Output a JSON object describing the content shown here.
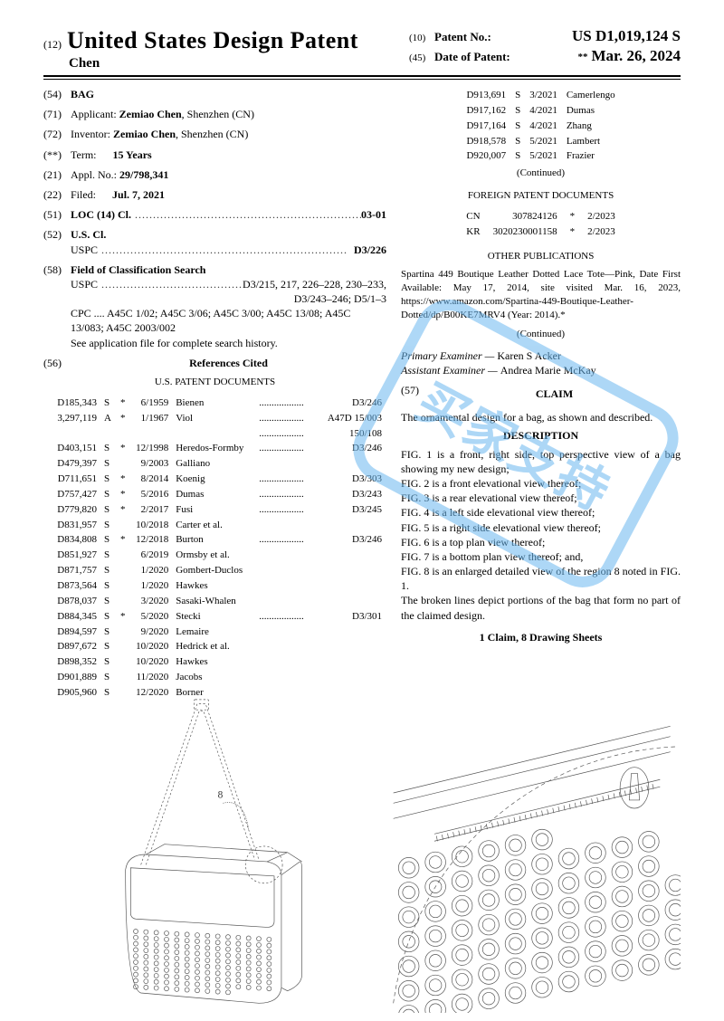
{
  "header": {
    "left_code": "(12)",
    "title": "United States Design Patent",
    "applicant_short": "Chen",
    "r1_code": "(10)",
    "r1_label": "Patent No.:",
    "r1_val": "US D1,019,124 S",
    "r2_code": "(45)",
    "r2_label": "Date of Patent:",
    "r2_ast": "**",
    "r2_val": "Mar. 26, 2024"
  },
  "fields": {
    "f54_code": "(54)",
    "f54_label": "BAG",
    "f71_code": "(71)",
    "f71_label": "Applicant:",
    "f71_val": "Zemiao Chen",
    "f71_loc": ", Shenzhen (CN)",
    "f72_code": "(72)",
    "f72_label": "Inventor:",
    "f72_val": "Zemiao Chen",
    "f72_loc": ", Shenzhen (CN)",
    "fterm_code": "(**)",
    "fterm_label": "Term:",
    "fterm_val": "15 Years",
    "f21_code": "(21)",
    "f21_label": "Appl. No.:",
    "f21_val": "29/798,341",
    "f22_code": "(22)",
    "f22_label": "Filed:",
    "f22_val": "Jul. 7, 2021",
    "f51_code": "(51)",
    "f51_label": "LOC (14) Cl.",
    "f51_val": "03-01",
    "f52_code": "(52)",
    "f52_label": "U.S. Cl.",
    "f52_sub": "USPC",
    "f52_val": "D3/226",
    "f58_code": "(58)",
    "f58_label": "Field of Classification Search",
    "f58_uspc": "USPC",
    "f58_uspc_val": "D3/215, 217, 226–228, 230–233,",
    "f58_uspc_val2": "D3/243–246; D5/1–3",
    "f58_cpc": "CPC .... A45C 1/02; A45C 3/06; A45C 3/00; A45C 13/08; A45C 13/083; A45C 2003/002",
    "f58_note": "See application file for complete search history.",
    "f56_code": "(56)",
    "f56_label": "References Cited",
    "us_docs_title": "U.S. PATENT DOCUMENTS"
  },
  "us_refs": [
    {
      "no": "D185,343",
      "t": "S",
      "a": "*",
      "d": "6/1959",
      "n": "Bienen",
      "c": "D3/246"
    },
    {
      "no": "3,297,119",
      "t": "A",
      "a": "*",
      "d": "1/1967",
      "n": "Viol",
      "c": "A47D 15/003"
    },
    {
      "no": "",
      "t": "",
      "a": "",
      "d": "",
      "n": "",
      "c": "150/108"
    },
    {
      "no": "D403,151",
      "t": "S",
      "a": "*",
      "d": "12/1998",
      "n": "Heredos-Formby",
      "c": "D3/246"
    },
    {
      "no": "D479,397",
      "t": "S",
      "a": "",
      "d": "9/2003",
      "n": "Galliano",
      "c": ""
    },
    {
      "no": "D711,651",
      "t": "S",
      "a": "*",
      "d": "8/2014",
      "n": "Koenig",
      "c": "D3/303"
    },
    {
      "no": "D757,427",
      "t": "S",
      "a": "*",
      "d": "5/2016",
      "n": "Dumas",
      "c": "D3/243"
    },
    {
      "no": "D779,820",
      "t": "S",
      "a": "*",
      "d": "2/2017",
      "n": "Fusi",
      "c": "D3/245"
    },
    {
      "no": "D831,957",
      "t": "S",
      "a": "",
      "d": "10/2018",
      "n": "Carter et al.",
      "c": ""
    },
    {
      "no": "D834,808",
      "t": "S",
      "a": "*",
      "d": "12/2018",
      "n": "Burton",
      "c": "D3/246"
    },
    {
      "no": "D851,927",
      "t": "S",
      "a": "",
      "d": "6/2019",
      "n": "Ormsby et al.",
      "c": ""
    },
    {
      "no": "D871,757",
      "t": "S",
      "a": "",
      "d": "1/2020",
      "n": "Gombert-Duclos",
      "c": ""
    },
    {
      "no": "D873,564",
      "t": "S",
      "a": "",
      "d": "1/2020",
      "n": "Hawkes",
      "c": ""
    },
    {
      "no": "D878,037",
      "t": "S",
      "a": "",
      "d": "3/2020",
      "n": "Sasaki-Whalen",
      "c": ""
    },
    {
      "no": "D884,345",
      "t": "S",
      "a": "*",
      "d": "5/2020",
      "n": "Stecki",
      "c": "D3/301"
    },
    {
      "no": "D894,597",
      "t": "S",
      "a": "",
      "d": "9/2020",
      "n": "Lemaire",
      "c": ""
    },
    {
      "no": "D897,672",
      "t": "S",
      "a": "",
      "d": "10/2020",
      "n": "Hedrick et al.",
      "c": ""
    },
    {
      "no": "D898,352",
      "t": "S",
      "a": "",
      "d": "10/2020",
      "n": "Hawkes",
      "c": ""
    },
    {
      "no": "D901,889",
      "t": "S",
      "a": "",
      "d": "11/2020",
      "n": "Jacobs",
      "c": ""
    },
    {
      "no": "D905,960",
      "t": "S",
      "a": "",
      "d": "12/2020",
      "n": "Borner",
      "c": ""
    }
  ],
  "col2_refs": [
    {
      "no": "D913,691",
      "t": "S",
      "d": "3/2021",
      "n": "Camerlengo"
    },
    {
      "no": "D917,162",
      "t": "S",
      "d": "4/2021",
      "n": "Dumas"
    },
    {
      "no": "D917,164",
      "t": "S",
      "d": "4/2021",
      "n": "Zhang"
    },
    {
      "no": "D918,578",
      "t": "S",
      "d": "5/2021",
      "n": "Lambert"
    },
    {
      "no": "D920,007",
      "t": "S",
      "d": "5/2021",
      "n": "Frazier"
    }
  ],
  "continued": "(Continued)",
  "fp_title": "FOREIGN PATENT DOCUMENTS",
  "fp_refs": [
    {
      "cc": "CN",
      "no": "307824126",
      "a": "*",
      "d": "2/2023"
    },
    {
      "cc": "KR",
      "no": "3020230001158",
      "a": "*",
      "d": "2/2023"
    }
  ],
  "other_title": "OTHER PUBLICATIONS",
  "other_text": "Spartina 449 Boutique Leather Dotted Lace Tote—Pink, Date First Available: May 17, 2014, site visited Mar. 16, 2023, https://www.amazon.com/Spartina-449-Boutique-Leather-Dotted/dp/B00KE7MRV4 (Year: 2014).*",
  "examiner1_lbl": "Primary Examiner — ",
  "examiner1": "Karen S Acker",
  "examiner2_lbl": "Assistant Examiner — ",
  "examiner2": "Andrea Marie McKay",
  "f57_code": "(57)",
  "claim_t": "CLAIM",
  "claim_text": "The ornamental design for a bag, as shown and described.",
  "desc_t": "DESCRIPTION",
  "desc_lines": [
    "FIG. 1 is a front, right side, top perspective view of a bag showing my new design;",
    "FIG. 2 is a front elevational view thereof;",
    "FIG. 3 is a rear elevational view thereof;",
    "FIG. 4 is a left side elevational view thereof;",
    "FIG. 5 is a right side elevational view thereof;",
    "FIG. 6 is a top plan view thereof;",
    "FIG. 7 is a bottom plan view thereof; and,",
    "FIG. 8 is an enlarged detailed view of the region 8 noted in FIG. 1.",
    "The broken lines depict portions of the bag that form no part of the claimed design."
  ],
  "claim_count": "1 Claim, 8 Drawing Sheets",
  "watermark": "买家支持",
  "colors": {
    "watermark": "#6bb8f0",
    "text": "#000000",
    "stroke": "#555555"
  }
}
